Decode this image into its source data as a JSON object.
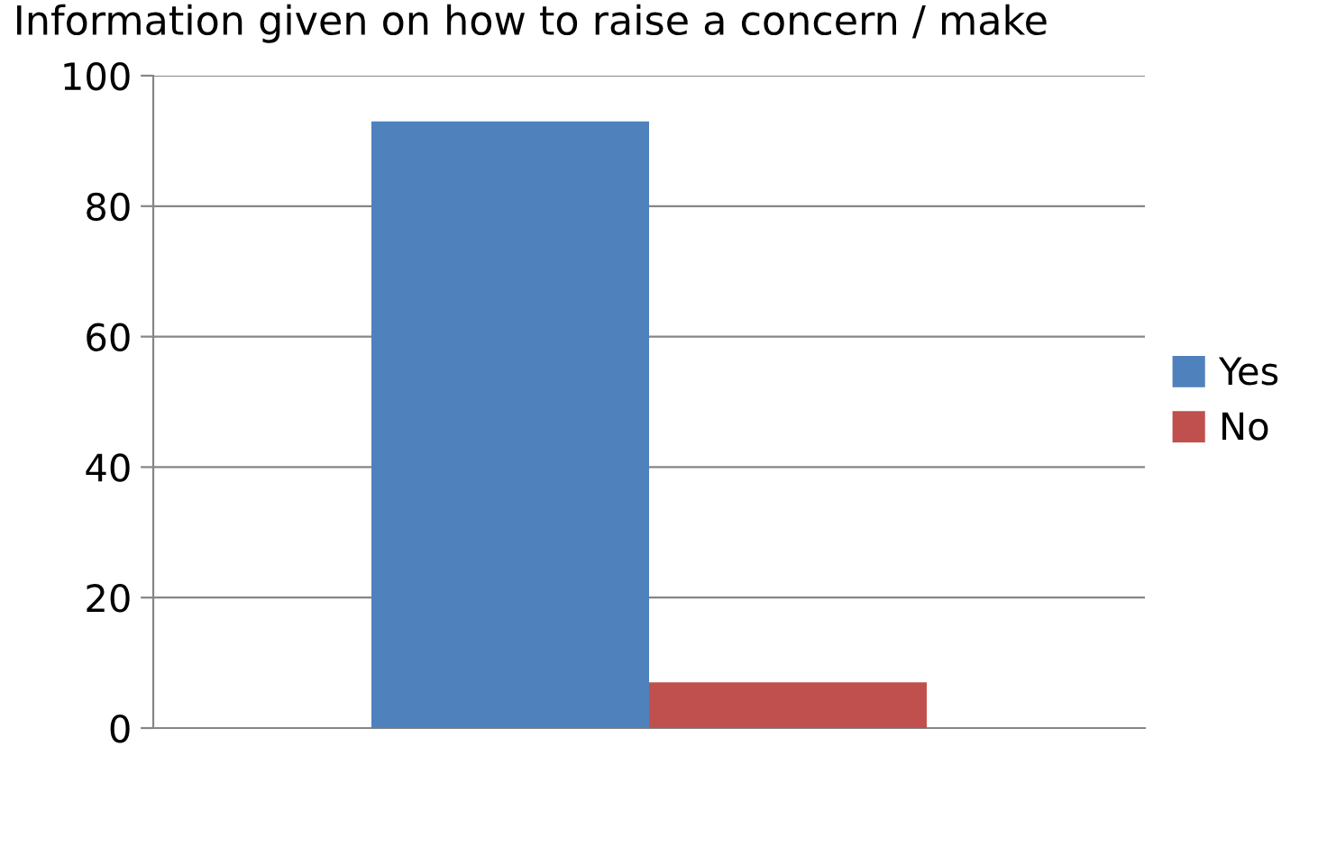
{
  "chart_data": {
    "type": "bar",
    "title": "Information given on how to raise a concern / make",
    "categories": [
      null
    ],
    "series": [
      {
        "name": "Yes",
        "color": "#4f81bd",
        "values": [
          93
        ]
      },
      {
        "name": "No",
        "color": "#c0504d",
        "values": [
          7
        ]
      }
    ],
    "ylim": [
      0,
      100
    ],
    "yticks": [
      0,
      20,
      40,
      60,
      80,
      100
    ],
    "grid": "y",
    "legend": "right"
  }
}
